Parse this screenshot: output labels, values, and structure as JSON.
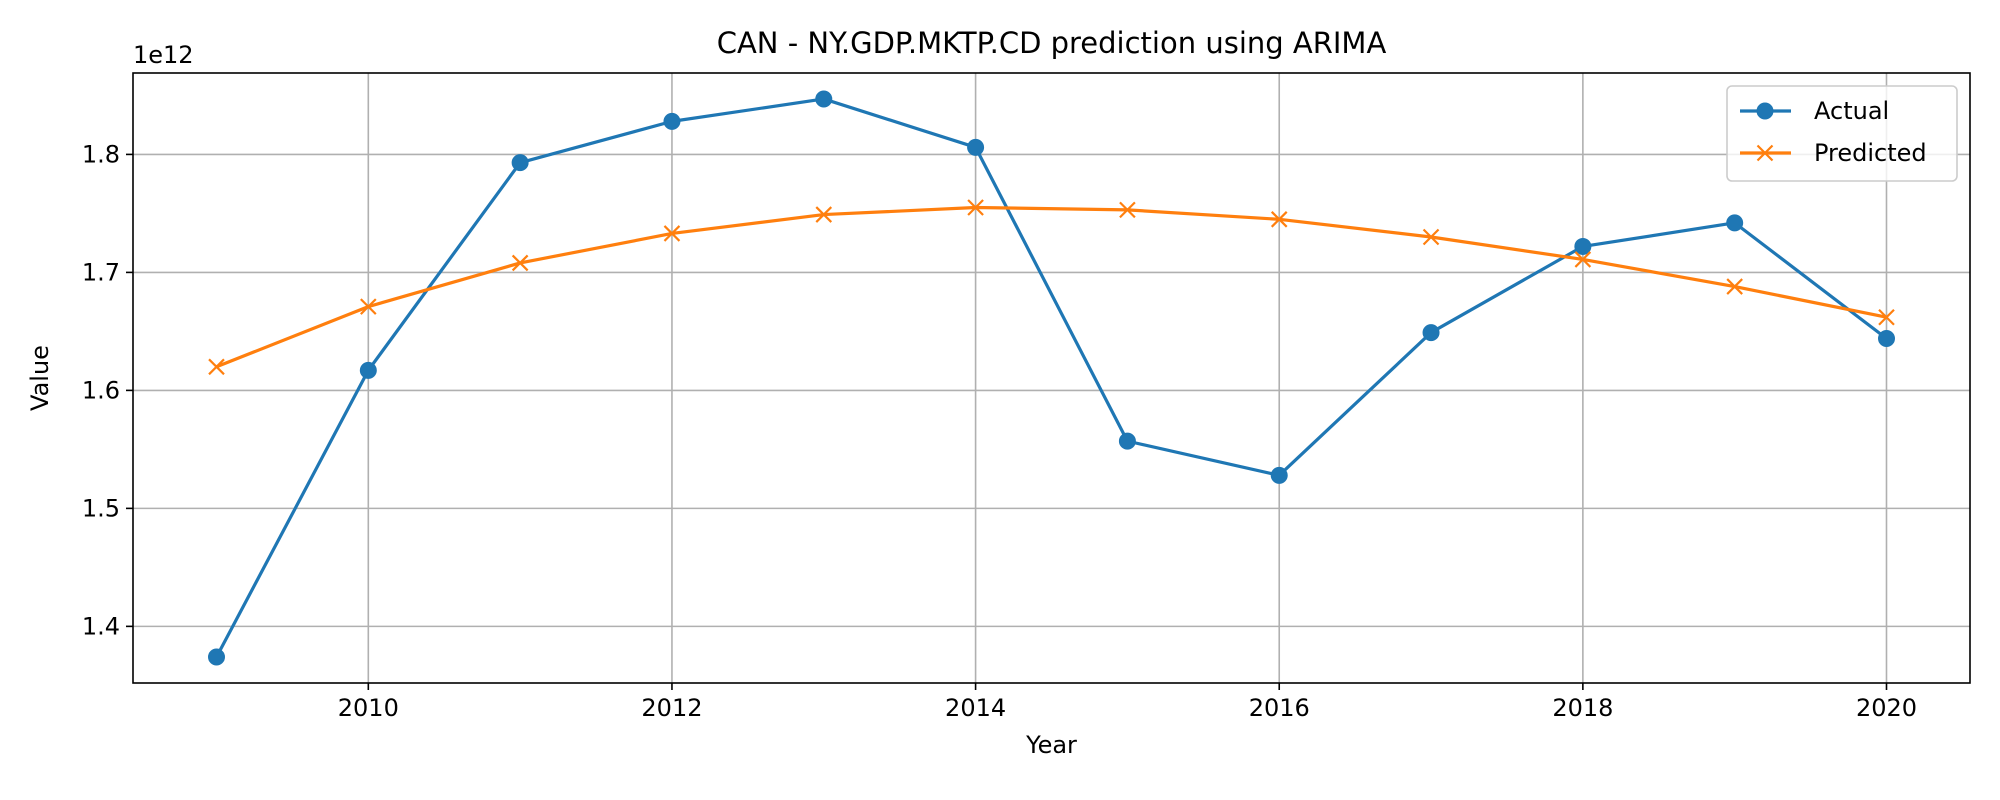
{
  "chart_data": {
    "type": "line",
    "title": "CAN - NY.GDP.MKTP.CD prediction using ARIMA",
    "xlabel": "Year",
    "ylabel": "Value",
    "y_offset_label": "1e12",
    "xlim": [
      2008.45,
      2020.55
    ],
    "ylim": [
      1.352,
      1.869
    ],
    "x_ticks": [
      2010,
      2012,
      2014,
      2016,
      2018,
      2020
    ],
    "y_ticks": [
      1.4,
      1.5,
      1.6,
      1.7,
      1.8
    ],
    "y_tick_labels": [
      "1.4",
      "1.5",
      "1.6",
      "1.7",
      "1.8"
    ],
    "grid": true,
    "legend_position": "top-right",
    "x": [
      2009,
      2010,
      2011,
      2012,
      2013,
      2014,
      2015,
      2016,
      2017,
      2018,
      2019,
      2020
    ],
    "series": [
      {
        "name": "Actual",
        "color": "#1f77b4",
        "marker": "circle",
        "values": [
          1.374,
          1.617,
          1.793,
          1.828,
          1.847,
          1.806,
          1.557,
          1.528,
          1.649,
          1.722,
          1.742,
          1.644
        ]
      },
      {
        "name": "Predicted",
        "color": "#ff7f0e",
        "marker": "x",
        "values": [
          1.62,
          1.671,
          1.708,
          1.733,
          1.749,
          1.755,
          1.753,
          1.745,
          1.73,
          1.711,
          1.688,
          1.662
        ]
      }
    ]
  }
}
